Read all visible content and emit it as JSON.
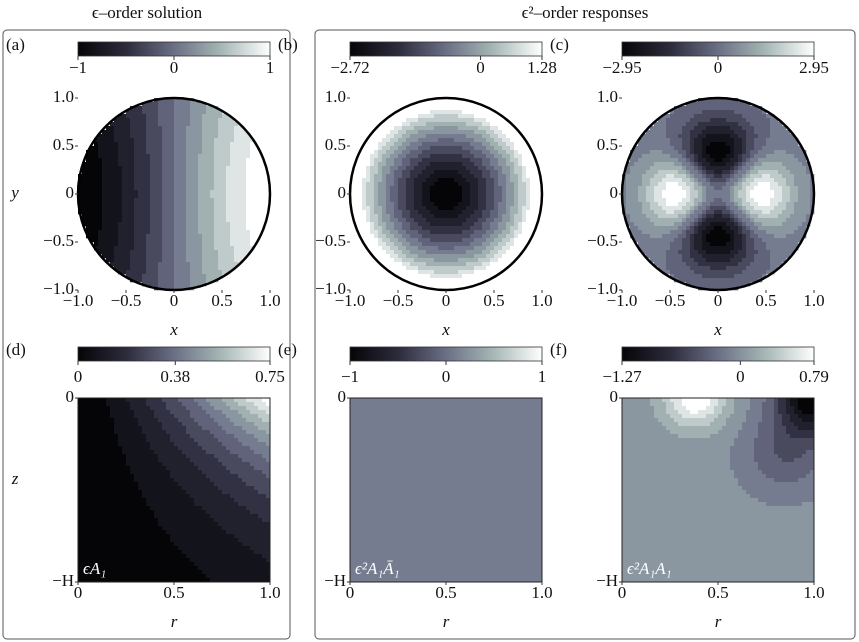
{
  "group_titles": [
    "ϵ–order solution",
    "ϵ²–order responses"
  ],
  "chart_data": [
    {
      "type": "contour",
      "panel_label": "(a)",
      "field": "a",
      "clim": [
        -1,
        1
      ],
      "cticks": [
        {
          "value": -1,
          "label": "−1"
        },
        0,
        1
      ],
      "xlabel": "x",
      "ylabel": "y",
      "xlim": [
        -1,
        1
      ],
      "xticks": [
        {
          "value": -1,
          "label": "−1.0"
        },
        {
          "value": -0.5,
          "label": "−0.5"
        },
        0,
        0.5,
        {
          "value": 1,
          "label": "1.0"
        }
      ],
      "ylim": [
        -1,
        1
      ],
      "yticks": [
        {
          "value": 1,
          "label": "1.0"
        },
        0.5,
        0,
        {
          "value": -0.5,
          "label": "−0.5"
        },
        {
          "value": -1,
          "label": "−1.0"
        }
      ]
    },
    {
      "type": "contour",
      "panel_label": "(b)",
      "field": "b",
      "clim": [
        -2.72,
        1.28
      ],
      "cticks": [
        {
          "value": -2.72,
          "label": "−2.72"
        },
        0,
        1.28
      ],
      "xlabel": "x",
      "xlim": [
        -1,
        1
      ],
      "xticks": [
        {
          "value": -1,
          "label": "−1.0"
        },
        {
          "value": -0.5,
          "label": "−0.5"
        },
        0,
        0.5,
        {
          "value": 1,
          "label": "1.0"
        }
      ],
      "ylim": [
        -1,
        1
      ],
      "yticks": [
        {
          "value": 1,
          "label": "1.0"
        },
        0.5,
        0,
        {
          "value": -0.5,
          "label": "−0.5"
        },
        {
          "value": -1,
          "label": "−1.0"
        }
      ]
    },
    {
      "type": "contour",
      "panel_label": "(c)",
      "field": "c",
      "clim": [
        -2.95,
        2.95
      ],
      "cticks": [
        {
          "value": -2.95,
          "label": "−2.95"
        },
        0,
        2.95
      ],
      "xlabel": "x",
      "xlim": [
        -1,
        1
      ],
      "xticks": [
        {
          "value": -1,
          "label": "−1.0"
        },
        {
          "value": -0.5,
          "label": "−0.5"
        },
        0,
        0.5,
        {
          "value": 1,
          "label": "1.0"
        }
      ],
      "ylim": [
        -1,
        1
      ],
      "yticks": [
        {
          "value": 1,
          "label": "1.0"
        },
        0.5,
        0,
        {
          "value": -0.5,
          "label": "−0.5"
        },
        {
          "value": -1,
          "label": "−1.0"
        }
      ]
    },
    {
      "type": "contour",
      "panel_label": "(d)",
      "field": "d",
      "clim": [
        0,
        0.75
      ],
      "cticks": [
        0,
        0.38,
        0.75
      ],
      "xlabel": "r",
      "ylabel": "z",
      "annotation": "ϵA₁",
      "xlim": [
        0,
        1
      ],
      "xticks": [
        0,
        0.5,
        {
          "value": 1,
          "label": "1.0"
        }
      ],
      "ylim": [
        -1,
        0
      ],
      "yticks": [
        0,
        {
          "value": -1,
          "label": "−H"
        }
      ]
    },
    {
      "type": "contour",
      "panel_label": "(e)",
      "field": "e",
      "clim": [
        -1,
        1
      ],
      "cticks": [
        {
          "value": -1,
          "label": "−1"
        },
        0,
        1
      ],
      "xlabel": "r",
      "annotation": "ϵ²A₁Ā₁",
      "xlim": [
        0,
        1
      ],
      "xticks": [
        0,
        0.5,
        {
          "value": 1,
          "label": "1.0"
        }
      ],
      "ylim": [
        -1,
        0
      ],
      "yticks": [
        0,
        {
          "value": -1,
          "label": "−H"
        }
      ]
    },
    {
      "type": "contour",
      "panel_label": "(f)",
      "field": "f",
      "clim": [
        -1.27,
        0.79
      ],
      "cticks": [
        {
          "value": -1.27,
          "label": "−1.27"
        },
        0,
        0.79
      ],
      "xlabel": "r",
      "annotation": "ϵ²A₁A₁",
      "xlim": [
        0,
        1
      ],
      "xticks": [
        0,
        0.5,
        {
          "value": 1,
          "label": "1.0"
        }
      ],
      "ylim": [
        -1,
        0
      ],
      "yticks": [
        0,
        {
          "value": -1,
          "label": "−H"
        }
      ]
    }
  ]
}
